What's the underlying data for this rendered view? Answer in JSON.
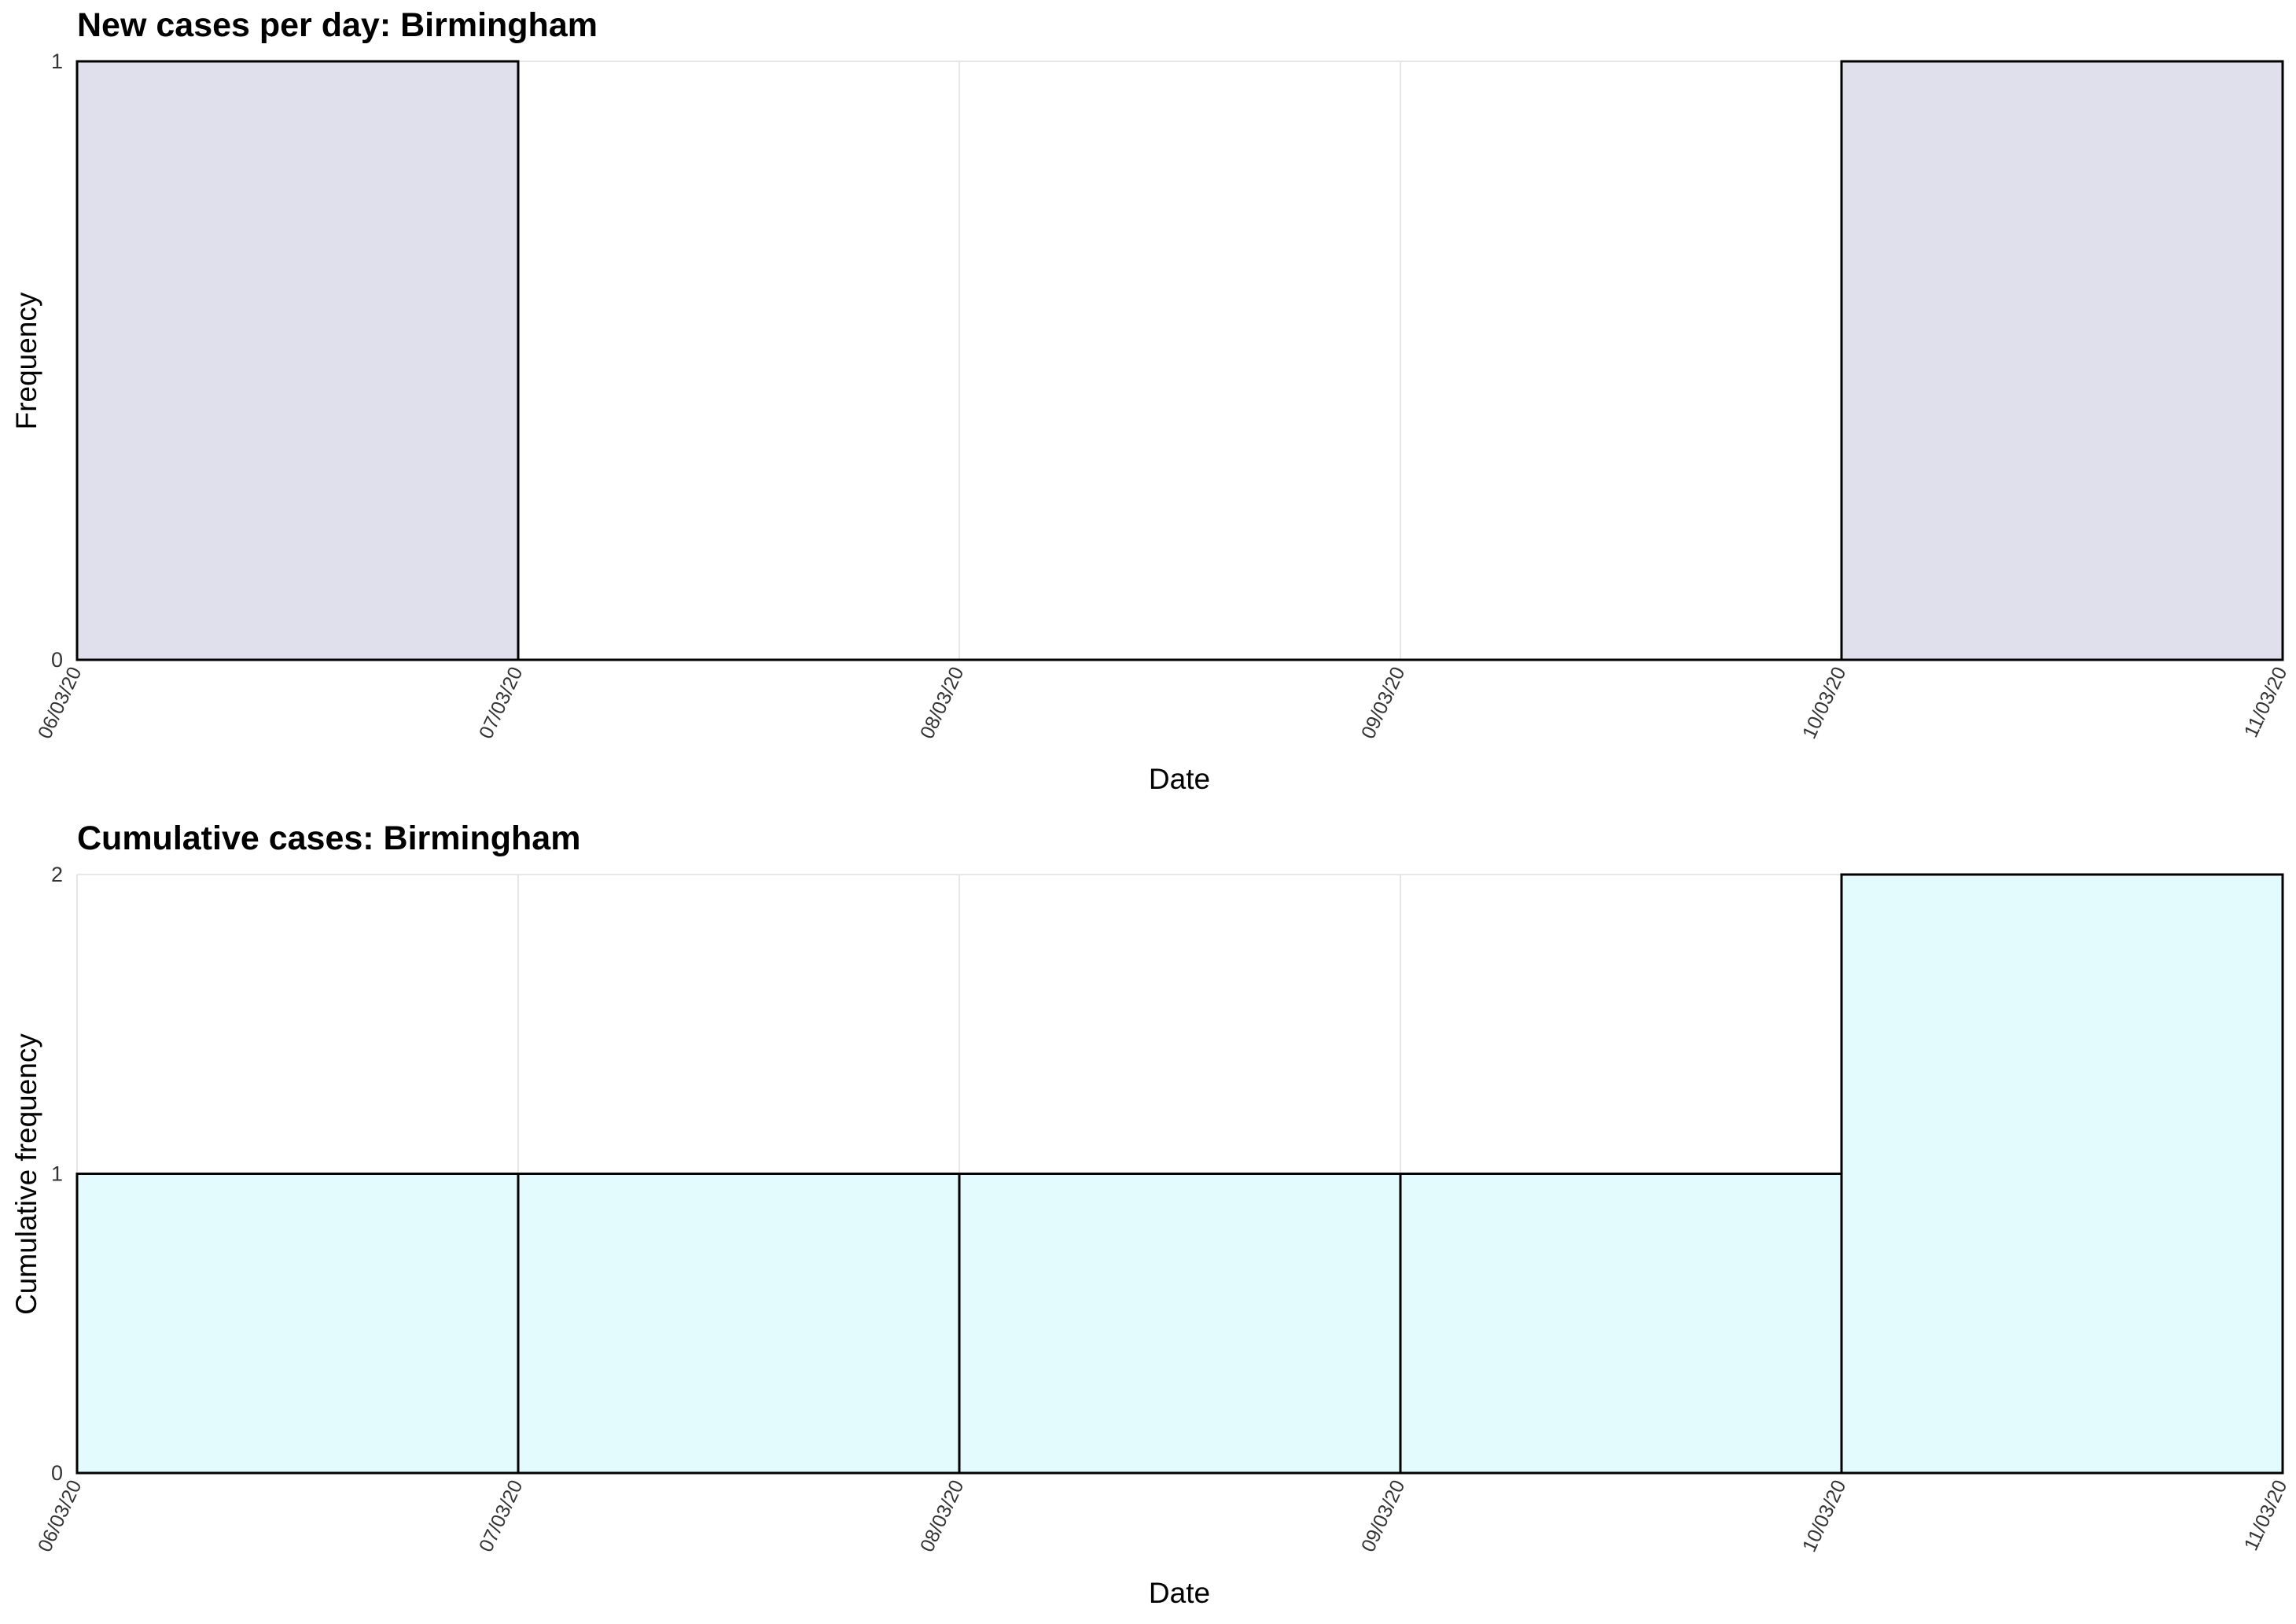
{
  "colors": {
    "new_cases_fill": "#e0dfec",
    "cumulative_fill": "#e4fbfd",
    "bar_outline": "#000000",
    "grid": "#e6e6e6",
    "tick_text": "#333333"
  },
  "chart_data": [
    {
      "type": "bar",
      "title": "New cases per day: Birmingham",
      "xlabel": "Date",
      "ylabel": "Frequency",
      "x_ticks": [
        "06/03/20",
        "07/03/20",
        "08/03/20",
        "09/03/20",
        "10/03/20",
        "11/03/20"
      ],
      "y_ticks": [
        "0",
        "1"
      ],
      "ylim": [
        0,
        1
      ],
      "bins": [
        {
          "start": "06/03/20",
          "end": "07/03/20",
          "value": 1
        },
        {
          "start": "07/03/20",
          "end": "08/03/20",
          "value": 0
        },
        {
          "start": "08/03/20",
          "end": "09/03/20",
          "value": 0
        },
        {
          "start": "09/03/20",
          "end": "10/03/20",
          "value": 0
        },
        {
          "start": "10/03/20",
          "end": "11/03/20",
          "value": 1
        }
      ],
      "grid": true,
      "fill_color": "#e0dfec"
    },
    {
      "type": "bar",
      "title": "Cumulative cases: Birmingham",
      "xlabel": "Date",
      "ylabel": "Cumulative frequency",
      "x_ticks": [
        "06/03/20",
        "07/03/20",
        "08/03/20",
        "09/03/20",
        "10/03/20",
        "11/03/20"
      ],
      "y_ticks": [
        "0",
        "1",
        "2"
      ],
      "ylim": [
        0,
        2
      ],
      "bins": [
        {
          "start": "06/03/20",
          "end": "07/03/20",
          "value": 1
        },
        {
          "start": "07/03/20",
          "end": "08/03/20",
          "value": 1
        },
        {
          "start": "08/03/20",
          "end": "09/03/20",
          "value": 1
        },
        {
          "start": "09/03/20",
          "end": "10/03/20",
          "value": 1
        },
        {
          "start": "10/03/20",
          "end": "11/03/20",
          "value": 2
        }
      ],
      "grid": true,
      "fill_color": "#e4fbfd"
    }
  ]
}
